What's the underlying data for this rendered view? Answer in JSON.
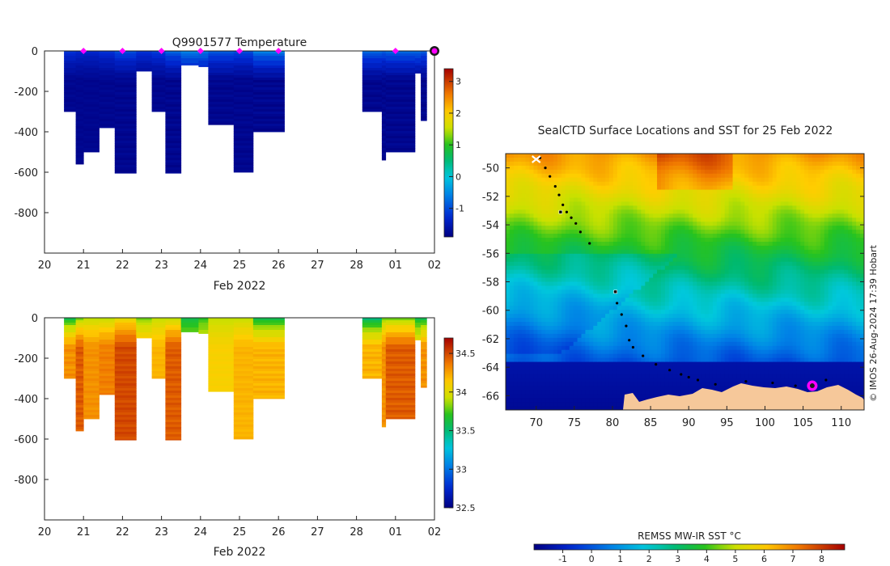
{
  "colors": {
    "axis": "#222222",
    "marker_magenta": "#ff00ff",
    "marker_dark": "#1a1a1a",
    "land": "#f6c89a"
  },
  "chart_data": [
    {
      "id": "temperature_section",
      "type": "heatmap",
      "title": "Q9901577  Temperature",
      "xlabel": "Feb 2022",
      "x_ticks": [
        "20",
        "21",
        "22",
        "23",
        "24",
        "25",
        "26",
        "27",
        "28",
        "01",
        "02"
      ],
      "x_range_days": [
        20,
        30
      ],
      "y_ticks": [
        0,
        -200,
        -400,
        -600,
        -800
      ],
      "ylim": [
        -1000,
        0
      ],
      "colorbar": {
        "ticks": [
          -1,
          0,
          1,
          2,
          3
        ],
        "range": [
          -1.9,
          3.4
        ]
      },
      "profiles": [
        {
          "t0": 20.5,
          "t1": 20.8,
          "bottom": -300,
          "surface": -1.2,
          "deep": -1.8
        },
        {
          "t0": 20.8,
          "t1": 21.0,
          "bottom": -560,
          "surface": -1.3,
          "deep": -1.8
        },
        {
          "t0": 21.0,
          "t1": 21.4,
          "bottom": -500,
          "surface": -1.3,
          "deep": -1.8
        },
        {
          "t0": 21.4,
          "t1": 21.8,
          "bottom": -380,
          "surface": -1.2,
          "deep": -1.8
        },
        {
          "t0": 21.8,
          "t1": 22.35,
          "bottom": -605,
          "surface": -1.0,
          "deep": -1.8
        },
        {
          "t0": 22.35,
          "t1": 22.75,
          "bottom": -100,
          "surface": -1.2,
          "deep": -1.8
        },
        {
          "t0": 22.75,
          "t1": 23.1,
          "bottom": -300,
          "surface": -1.1,
          "deep": -1.8
        },
        {
          "t0": 23.1,
          "t1": 23.5,
          "bottom": -605,
          "surface": -0.8,
          "deep": -1.8
        },
        {
          "t0": 23.5,
          "t1": 23.95,
          "bottom": -70,
          "surface": -0.6,
          "deep": -1.6
        },
        {
          "t0": 23.95,
          "t1": 24.2,
          "bottom": -78,
          "surface": -0.7,
          "deep": -1.6
        },
        {
          "t0": 24.2,
          "t1": 24.85,
          "bottom": -365,
          "surface": -0.9,
          "deep": -1.8
        },
        {
          "t0": 24.85,
          "t1": 25.35,
          "bottom": -600,
          "surface": -1.0,
          "deep": -1.8
        },
        {
          "t0": 25.35,
          "t1": 26.15,
          "bottom": -400,
          "surface": -0.6,
          "deep": -1.8
        },
        {
          "t0": 28.15,
          "t1": 28.65,
          "bottom": -300,
          "surface": -0.8,
          "deep": -1.8
        },
        {
          "t0": 28.65,
          "t1": 28.75,
          "bottom": -540,
          "surface": -0.9,
          "deep": -1.8
        },
        {
          "t0": 28.75,
          "t1": 29.5,
          "bottom": -500,
          "surface": -0.8,
          "deep": -1.8
        },
        {
          "t0": 29.5,
          "t1": 29.65,
          "bottom": -110,
          "surface": -0.8,
          "deep": -1.8
        },
        {
          "t0": 29.65,
          "t1": 29.8,
          "bottom": -345,
          "surface": -0.9,
          "deep": -1.8
        }
      ],
      "surface_markers": [
        21.0,
        22.0,
        23.0,
        24.0,
        25.0,
        26.0,
        29.0
      ],
      "current_marker": 30.0
    },
    {
      "id": "salinity_section",
      "type": "heatmap",
      "title": "",
      "xlabel": "Feb 2022",
      "x_ticks": [
        "20",
        "21",
        "22",
        "23",
        "24",
        "25",
        "26",
        "27",
        "28",
        "01",
        "02"
      ],
      "x_range_days": [
        20,
        30
      ],
      "y_ticks": [
        0,
        -200,
        -400,
        -600,
        -800
      ],
      "ylim": [
        -1000,
        0
      ],
      "colorbar": {
        "ticks": [
          32.5,
          33,
          33.5,
          34,
          34.5
        ],
        "range": [
          32.5,
          34.7
        ]
      },
      "profiles": [
        {
          "t0": 20.5,
          "t1": 20.8,
          "bottom": -300,
          "surface": 33.6,
          "deep": 34.3
        },
        {
          "t0": 20.8,
          "t1": 21.0,
          "bottom": -560,
          "surface": 33.8,
          "deep": 34.45
        },
        {
          "t0": 21.0,
          "t1": 21.4,
          "bottom": -500,
          "surface": 33.9,
          "deep": 34.3
        },
        {
          "t0": 21.4,
          "t1": 21.8,
          "bottom": -380,
          "surface": 33.9,
          "deep": 34.35
        },
        {
          "t0": 21.8,
          "t1": 22.35,
          "bottom": -605,
          "surface": 34.0,
          "deep": 34.5
        },
        {
          "t0": 22.35,
          "t1": 22.75,
          "bottom": -100,
          "surface": 33.8,
          "deep": 34.2
        },
        {
          "t0": 22.75,
          "t1": 23.1,
          "bottom": -300,
          "surface": 33.9,
          "deep": 34.2
        },
        {
          "t0": 23.1,
          "t1": 23.5,
          "bottom": -605,
          "surface": 33.9,
          "deep": 34.45
        },
        {
          "t0": 23.5,
          "t1": 23.95,
          "bottom": -70,
          "surface": 33.6,
          "deep": 33.9
        },
        {
          "t0": 23.95,
          "t1": 24.2,
          "bottom": -78,
          "surface": 33.7,
          "deep": 34.0
        },
        {
          "t0": 24.2,
          "t1": 24.85,
          "bottom": -365,
          "surface": 33.9,
          "deep": 34.1
        },
        {
          "t0": 24.85,
          "t1": 25.35,
          "bottom": -600,
          "surface": 33.9,
          "deep": 34.2
        },
        {
          "t0": 25.35,
          "t1": 26.15,
          "bottom": -400,
          "surface": 33.6,
          "deep": 34.2
        },
        {
          "t0": 28.15,
          "t1": 28.65,
          "bottom": -300,
          "surface": 33.5,
          "deep": 34.2
        },
        {
          "t0": 28.65,
          "t1": 28.75,
          "bottom": -540,
          "surface": 33.8,
          "deep": 34.3
        },
        {
          "t0": 28.75,
          "t1": 29.5,
          "bottom": -500,
          "surface": 33.8,
          "deep": 34.45
        },
        {
          "t0": 29.5,
          "t1": 29.65,
          "bottom": -110,
          "surface": 33.6,
          "deep": 34.1
        },
        {
          "t0": 29.65,
          "t1": 29.8,
          "bottom": -345,
          "surface": 33.6,
          "deep": 34.3
        }
      ]
    },
    {
      "id": "sst_map",
      "type": "heatmap",
      "title": "SealCTD Surface Locations and SST for 25 Feb 2022",
      "x_ticks": [
        70,
        75,
        80,
        85,
        90,
        95,
        100,
        105,
        110
      ],
      "y_ticks": [
        -50,
        -52,
        -54,
        -56,
        -58,
        -60,
        -62,
        -64,
        -66
      ],
      "xlim": [
        66,
        113
      ],
      "ylim": [
        -67,
        -49
      ],
      "colorbar_label": "REMSS MW-IR SST °C",
      "colorbar_ticks": [
        -1,
        0,
        1,
        2,
        3,
        4,
        5,
        6,
        7,
        8
      ],
      "colorbar_range": [
        -2,
        8.8
      ],
      "track": [
        [
          70.5,
          -49.3
        ],
        [
          71.2,
          -50.0
        ],
        [
          71.8,
          -50.6
        ],
        [
          72.5,
          -51.3
        ],
        [
          73.0,
          -51.9
        ],
        [
          73.5,
          -52.6
        ],
        [
          74.0,
          -53.1
        ],
        [
          74.6,
          -53.5
        ],
        [
          75.2,
          -53.9
        ],
        [
          75.8,
          -54.5
        ],
        [
          77.0,
          -55.3
        ],
        [
          80.3,
          -58.7
        ],
        [
          80.6,
          -59.5
        ],
        [
          81.2,
          -60.3
        ],
        [
          81.8,
          -61.1
        ],
        [
          82.2,
          -62.1
        ],
        [
          82.7,
          -62.6
        ],
        [
          84.0,
          -63.2
        ],
        [
          85.7,
          -63.8
        ],
        [
          87.5,
          -64.2
        ],
        [
          89.0,
          -64.5
        ],
        [
          90.0,
          -64.7
        ],
        [
          91.2,
          -64.9
        ],
        [
          93.5,
          -65.2
        ],
        [
          97.5,
          -65.0
        ],
        [
          101.0,
          -65.1
        ],
        [
          104.0,
          -65.3
        ],
        [
          108.0,
          -64.9
        ]
      ],
      "track_highlight": [
        [
          73.2,
          -53.1
        ],
        [
          80.4,
          -58.7
        ]
      ],
      "start_marker": [
        70.0,
        -49.4
      ],
      "current_position": [
        106.2,
        -65.3
      ]
    }
  ],
  "credit": "© IMOS 26-Aug-2024 17:39 Hobart"
}
